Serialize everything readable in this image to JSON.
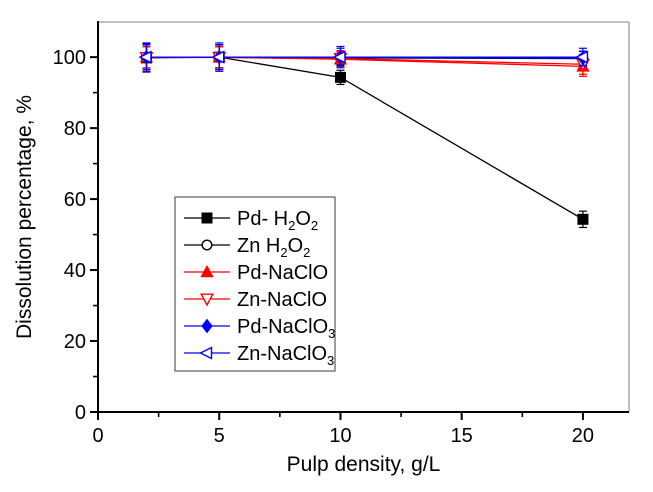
{
  "figure": {
    "background": "#ffffff"
  },
  "chart_data": {
    "type": "line",
    "title": "",
    "xlabel": "Pulp density, g/L",
    "ylabel": "Dissolution percentage, %",
    "xlim": [
      0,
      21.9
    ],
    "ylim": [
      0,
      109.9
    ],
    "xticks": [
      0,
      5,
      10,
      15,
      20
    ],
    "xticks_minor": [
      2.5,
      7.5,
      12.5,
      17.5
    ],
    "yticks": [
      0,
      20,
      40,
      60,
      80,
      100
    ],
    "yticks_minor": [
      10,
      30,
      50,
      70,
      90
    ],
    "grid": false,
    "axis_color": "#000000",
    "frame_color": "#9c9c9c",
    "legend": {
      "position": "inside-middle-left",
      "border_color": "#595959",
      "fill": "#ffffff"
    },
    "x": [
      2,
      5,
      10,
      20
    ],
    "series": [
      {
        "slug": "pd-h2o2",
        "label": "Pd- H2O2",
        "label_parts": [
          [
            "Pd- H",
            0
          ],
          [
            "2",
            1
          ],
          [
            "O",
            0
          ],
          [
            "2",
            1
          ]
        ],
        "color": "#000000",
        "marker": "square-filled",
        "values": [
          99.8,
          100,
          94.3,
          54.3
        ],
        "errors": [
          4,
          3.5,
          2,
          2.3
        ]
      },
      {
        "slug": "zn-h2o2",
        "label": "Zn H2O2",
        "label_parts": [
          [
            "Zn H",
            0
          ],
          [
            "2",
            1
          ],
          [
            "O",
            0
          ],
          [
            "2",
            1
          ]
        ],
        "color": "#000000",
        "marker": "circle-open",
        "values": [
          100,
          100,
          99.8,
          99.6
        ],
        "errors": [
          3.5,
          3,
          2,
          2
        ]
      },
      {
        "slug": "pd-naclo",
        "label": "Pd-NaClO",
        "label_parts": [
          [
            "Pd-NaClO",
            0
          ]
        ],
        "color": "#ff0000",
        "marker": "triangle-up-filled",
        "values": [
          100,
          100,
          99.4,
          97.4
        ],
        "errors": [
          3,
          3,
          2,
          2.8
        ]
      },
      {
        "slug": "zn-naclo",
        "label": "Zn-NaClO",
        "label_parts": [
          [
            "Zn-NaClO",
            0
          ]
        ],
        "color": "#ff0000",
        "marker": "triangle-down-open",
        "values": [
          99.9,
          99.9,
          99.6,
          98.0
        ],
        "errors": [
          3,
          3,
          2.2,
          2.8
        ]
      },
      {
        "slug": "pd-naclo3",
        "label": "Pd-NaClO3",
        "label_parts": [
          [
            "Pd-NaClO",
            0
          ],
          [
            "3",
            1
          ]
        ],
        "color": "#0000ff",
        "marker": "diamond-filled",
        "values": [
          100,
          100,
          100,
          99.7
        ],
        "errors": [
          3.5,
          3.5,
          2.5,
          2
        ]
      },
      {
        "slug": "zn-naclo3",
        "label": "Zn-NaClO3",
        "label_parts": [
          [
            "Zn-NaClO",
            0
          ],
          [
            "3",
            1
          ]
        ],
        "color": "#0000ff",
        "marker": "triangle-left-open",
        "values": [
          100,
          100,
          100,
          100
        ],
        "errors": [
          4,
          4,
          3,
          2.5
        ]
      }
    ]
  }
}
